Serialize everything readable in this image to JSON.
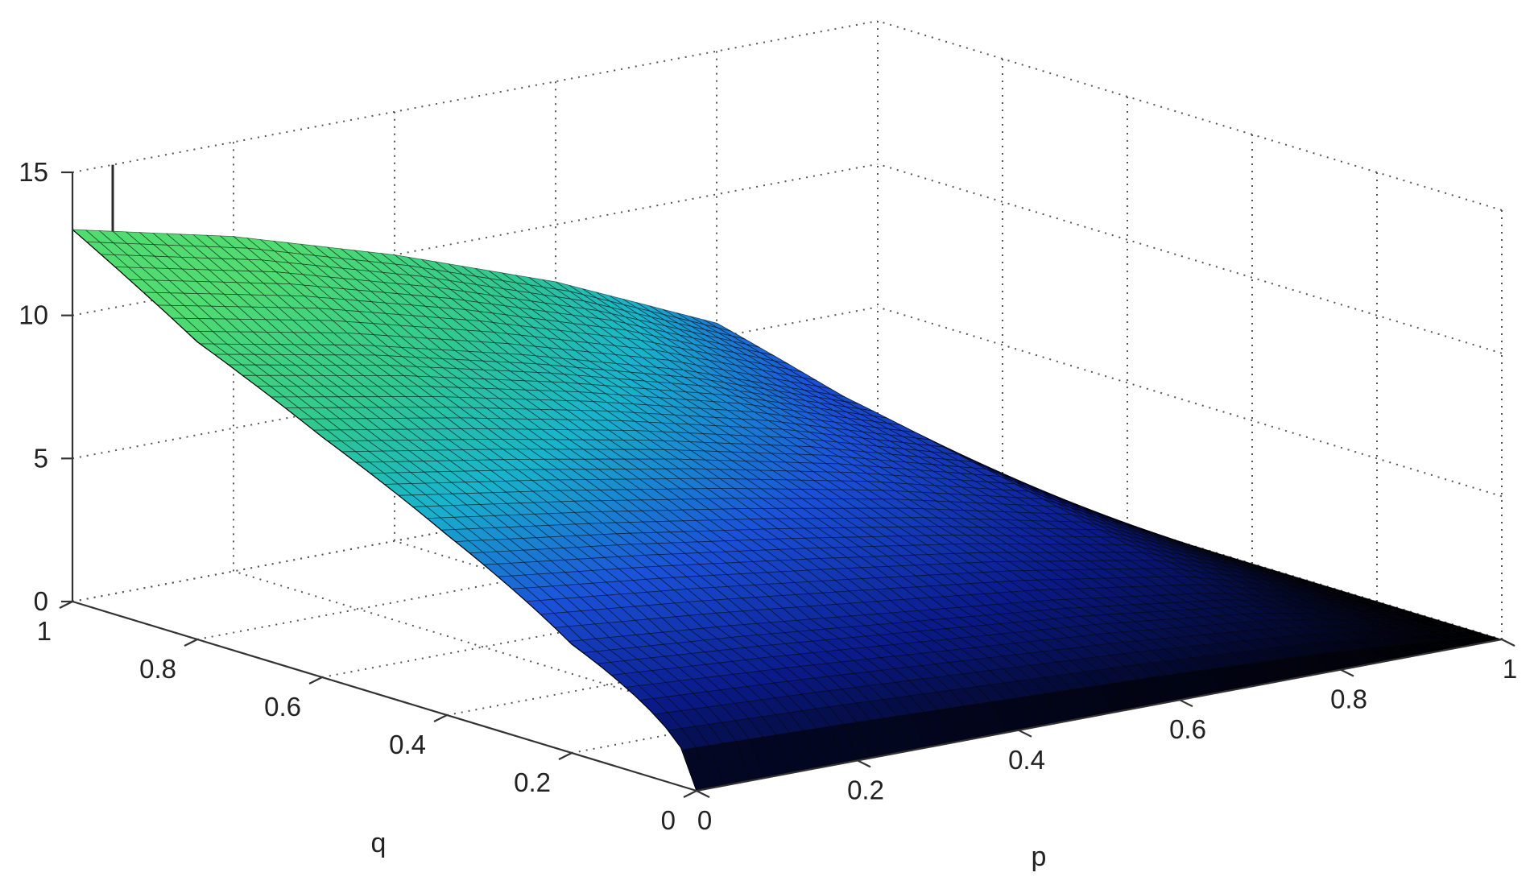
{
  "chart_data": {
    "type": "surface",
    "title": "",
    "xlabel": "p",
    "ylabel": "q",
    "zlabel": "",
    "x_range": [
      0,
      1
    ],
    "y_range": [
      0,
      1
    ],
    "z_range": [
      0,
      15
    ],
    "x_ticks": [
      "0",
      "0.2",
      "0.4",
      "0.6",
      "0.8",
      "1"
    ],
    "y_ticks": [
      "0",
      "0.2",
      "0.4",
      "0.6",
      "0.8",
      "1"
    ],
    "z_ticks": [
      "0",
      "5",
      "10",
      "15"
    ],
    "grid": true,
    "colormap": "winter-dark (black → blue → cyan → green)",
    "colormap_stops": [
      "#000000",
      "#0a1a8a",
      "#1a50d8",
      "#18b4cc",
      "#30c890",
      "#50dc70"
    ],
    "surface_edge_color": "#000000",
    "surface_samples": {
      "q": [
        0.2,
        0.4,
        0.6,
        0.8,
        1.0
      ],
      "p": [
        0.0,
        0.2,
        0.4,
        0.6,
        0.8,
        1.0
      ],
      "z": [
        [
          3.8,
          3.3,
          2.7,
          2.1,
          1.3,
          0.0
        ],
        [
          6.3,
          5.5,
          4.6,
          3.6,
          2.4,
          0.0
        ],
        [
          8.4,
          7.4,
          6.3,
          5.0,
          3.4,
          0.0
        ],
        [
          10.4,
          9.3,
          7.9,
          6.3,
          4.3,
          0.0
        ],
        [
          13.0,
          11.7,
          10.0,
          8.0,
          5.5,
          0.0
        ]
      ]
    },
    "annotations": [
      {
        "type": "spike",
        "p": 0.05,
        "q": 1.0,
        "z": 15.0
      }
    ]
  }
}
